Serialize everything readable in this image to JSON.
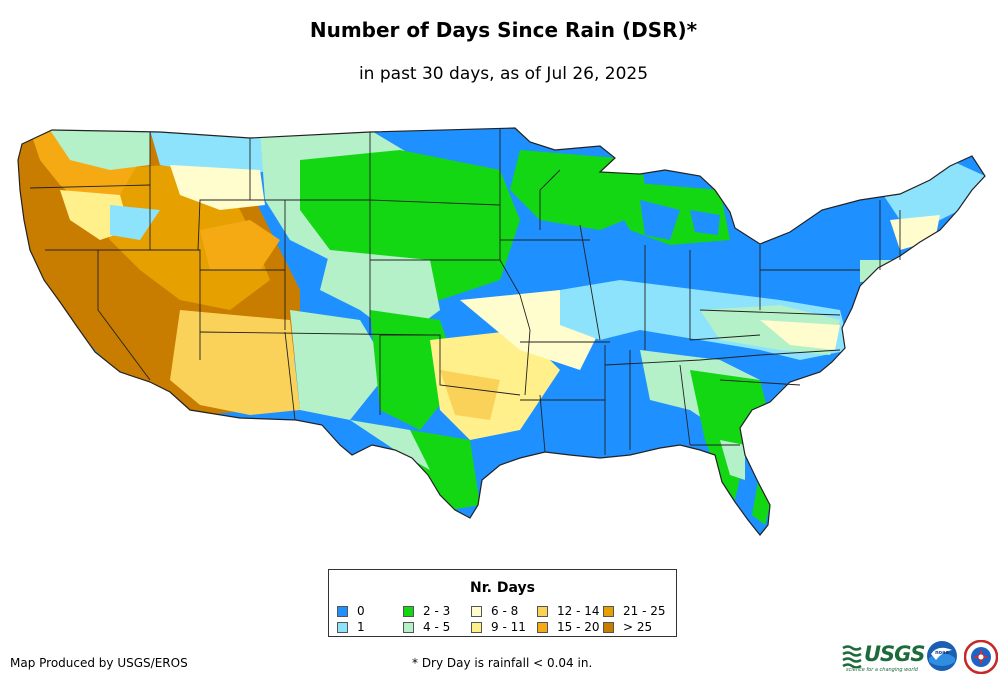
{
  "header": {
    "title": "Number of Days Since Rain (DSR)*",
    "subtitle": "in past 30 days, as of Jul 26, 2025"
  },
  "legend": {
    "title": "Nr. Days",
    "items": [
      {
        "label": "0",
        "color": "#1e90ff"
      },
      {
        "label": "1",
        "color": "#8ce3fb"
      },
      {
        "label": "2 - 3",
        "color": "#14d714"
      },
      {
        "label": "4 - 5",
        "color": "#b4f0c8"
      },
      {
        "label": "6 - 8",
        "color": "#fffccd"
      },
      {
        "label": "9 - 11",
        "color": "#fff08c"
      },
      {
        "label": "12 - 14",
        "color": "#fad25a"
      },
      {
        "label": "15 - 20",
        "color": "#f5aa14"
      },
      {
        "label": "21 - 25",
        "color": "#e6a000"
      },
      {
        "label": "> 25",
        "color": "#c87d00"
      }
    ]
  },
  "footer": {
    "credit": "Map Produced by USGS/EROS",
    "footnote": "* Dry Day is rainfall < 0.04 in.",
    "usgs_logo_text": "USGS",
    "usgs_tagline": "science for a changing world",
    "noaa_logo_text": "noaa"
  },
  "icons": {
    "usgs": "usgs-logo-icon",
    "noaa": "noaa-logo-icon",
    "nws": "nws-logo-icon"
  }
}
